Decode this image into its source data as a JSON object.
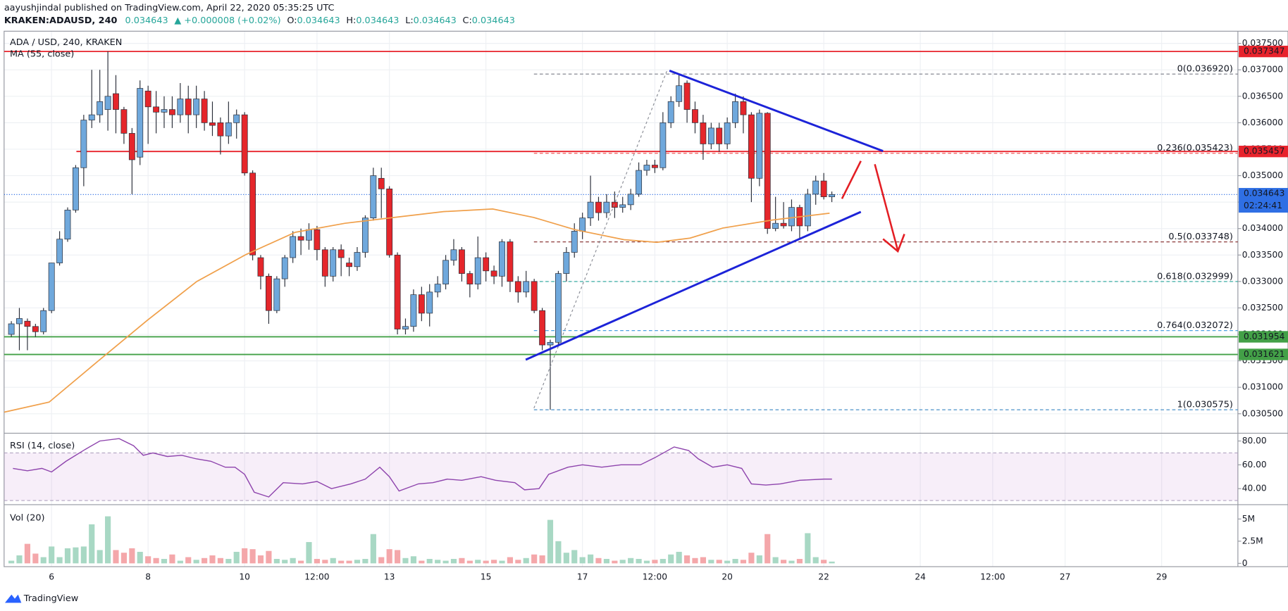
{
  "header": {
    "author_line": "aayushjindal published on TradingView.com, April 22, 2020 05:35:25 UTC",
    "symbol": "KRAKEN:ADAUSD, 240",
    "price": "0.034643",
    "change": "▲ +0.000008 (+0.02%)",
    "ohlc": [
      {
        "label": "O:",
        "value": "0.034643"
      },
      {
        "label": "H:",
        "value": "0.034643"
      },
      {
        "label": "L:",
        "value": "0.034643"
      },
      {
        "label": "C:",
        "value": "0.034643"
      }
    ],
    "footer": "TradingView"
  },
  "chart_data": [
    {
      "type": "candlestick",
      "title": "ADA / USD, 240, KRAKEN",
      "x": [
        5.167,
        5.333,
        5.5,
        5.667,
        5.833,
        6,
        6.167,
        6.333,
        6.5,
        6.667,
        6.833,
        7,
        7.167,
        7.333,
        7.5,
        7.667,
        7.833,
        8,
        8.167,
        8.333,
        8.5,
        8.667,
        8.833,
        9,
        9.167,
        9.333,
        9.5,
        9.667,
        9.833,
        10,
        10.167,
        10.333,
        10.5,
        10.667,
        10.833,
        11,
        11.167,
        11.333,
        11.5,
        11.667,
        11.833,
        12,
        12.167,
        12.333,
        12.5,
        12.667,
        12.833,
        13,
        13.167,
        13.333,
        13.5,
        13.667,
        13.833,
        14,
        14.167,
        14.333,
        14.5,
        14.667,
        14.833,
        15,
        15.167,
        15.333,
        15.5,
        15.667,
        15.833,
        16,
        16.167,
        16.333,
        16.5,
        16.667,
        16.833,
        17,
        17.167,
        17.333,
        17.5,
        17.667,
        17.833,
        18,
        18.167,
        18.333,
        18.5,
        18.667,
        18.833,
        19,
        19.167,
        19.333,
        19.5,
        19.667,
        19.833,
        20,
        20.167,
        20.333,
        20.5,
        20.667,
        20.833,
        21,
        21.167,
        21.333,
        21.5,
        21.667,
        21.833,
        22,
        22.167
      ],
      "open": [
        0.032,
        0.0322,
        0.03225,
        0.03215,
        0.03205,
        0.03245,
        0.03335,
        0.0338,
        0.03435,
        0.03515,
        0.03605,
        0.03615,
        0.03625,
        0.03655,
        0.03625,
        0.0358,
        0.03535,
        0.0366,
        0.0363,
        0.0362,
        0.03625,
        0.03615,
        0.03645,
        0.03615,
        0.03645,
        0.036,
        0.036,
        0.03575,
        0.036,
        0.03615,
        0.03505,
        0.03345,
        0.0331,
        0.03245,
        0.03305,
        0.03345,
        0.03385,
        0.03378,
        0.03398,
        0.0336,
        0.0331,
        0.0336,
        0.03335,
        0.03328,
        0.03355,
        0.0342,
        0.03495,
        0.03475,
        0.0335,
        0.0321,
        0.03215,
        0.03275,
        0.0324,
        0.0328,
        0.03295,
        0.0334,
        0.0336,
        0.03315,
        0.03295,
        0.03345,
        0.0332,
        0.0331,
        0.03375,
        0.033,
        0.0328,
        0.033,
        0.03245,
        0.0318,
        0.03185,
        0.03315,
        0.03355,
        0.03395,
        0.0342,
        0.0345,
        0.0343,
        0.0345,
        0.0344,
        0.03445,
        0.03465,
        0.0351,
        0.0352,
        0.03515,
        0.036,
        0.0364,
        0.03675,
        0.03625,
        0.036,
        0.0356,
        0.0359,
        0.0356,
        0.036,
        0.0364,
        0.03615,
        0.03495,
        0.03618,
        0.034,
        0.0341,
        0.03405,
        0.0344,
        0.03405,
        0.03465,
        0.0349,
        0.0346
      ],
      "high": [
        0.03225,
        0.0325,
        0.0323,
        0.0322,
        0.0325,
        0.03335,
        0.03395,
        0.0344,
        0.0352,
        0.03615,
        0.037,
        0.037,
        0.03735,
        0.0369,
        0.0363,
        0.0359,
        0.0368,
        0.0367,
        0.0366,
        0.0365,
        0.0365,
        0.03675,
        0.0367,
        0.0367,
        0.0366,
        0.0364,
        0.0361,
        0.0364,
        0.03625,
        0.0362,
        0.0351,
        0.0335,
        0.03315,
        0.0331,
        0.0335,
        0.03395,
        0.034,
        0.0341,
        0.03405,
        0.03365,
        0.03365,
        0.0337,
        0.03345,
        0.03365,
        0.03425,
        0.03515,
        0.03515,
        0.0348,
        0.03355,
        0.0323,
        0.03285,
        0.0329,
        0.03295,
        0.0331,
        0.0335,
        0.0338,
        0.03365,
        0.0332,
        0.03385,
        0.03355,
        0.0333,
        0.0338,
        0.0338,
        0.0331,
        0.0332,
        0.03305,
        0.0325,
        0.0319,
        0.0332,
        0.03365,
        0.0341,
        0.0343,
        0.035,
        0.0346,
        0.03465,
        0.0347,
        0.0346,
        0.03475,
        0.03525,
        0.0353,
        0.0353,
        0.0362,
        0.0365,
        0.03692,
        0.0368,
        0.0364,
        0.03615,
        0.036,
        0.036,
        0.0361,
        0.03655,
        0.0365,
        0.0362,
        0.03625,
        0.0362,
        0.0346,
        0.0345,
        0.03455,
        0.03445,
        0.03475,
        0.035,
        0.03505,
        0.0347
      ],
      "low": [
        0.03195,
        0.0317,
        0.0317,
        0.03195,
        0.032,
        0.0324,
        0.0333,
        0.03375,
        0.0343,
        0.0348,
        0.0359,
        0.036,
        0.03585,
        0.0358,
        0.0356,
        0.03465,
        0.0352,
        0.0356,
        0.0358,
        0.0359,
        0.0359,
        0.036,
        0.0358,
        0.0359,
        0.03585,
        0.03575,
        0.0354,
        0.0356,
        0.0357,
        0.035,
        0.0334,
        0.03285,
        0.0322,
        0.0324,
        0.0329,
        0.03335,
        0.0335,
        0.0336,
        0.0334,
        0.0329,
        0.033,
        0.0331,
        0.0331,
        0.0332,
        0.03345,
        0.03415,
        0.0342,
        0.03345,
        0.032,
        0.032,
        0.03205,
        0.03225,
        0.03215,
        0.0327,
        0.03285,
        0.0333,
        0.033,
        0.0327,
        0.03285,
        0.033,
        0.03295,
        0.0329,
        0.0328,
        0.0326,
        0.0327,
        0.0324,
        0.0317,
        0.030575,
        0.0318,
        0.033,
        0.03345,
        0.0338,
        0.03405,
        0.03415,
        0.0342,
        0.0342,
        0.0343,
        0.03435,
        0.0346,
        0.035,
        0.03505,
        0.0351,
        0.0359,
        0.0363,
        0.036,
        0.0358,
        0.0353,
        0.0355,
        0.03545,
        0.0355,
        0.0359,
        0.0358,
        0.0345,
        0.0348,
        0.0339,
        0.03395,
        0.034,
        0.03395,
        0.0338,
        0.03395,
        0.03445,
        0.03455,
        0.0345
      ],
      "close": [
        0.0322,
        0.0323,
        0.03215,
        0.03205,
        0.03245,
        0.03335,
        0.0338,
        0.03435,
        0.03515,
        0.03605,
        0.03615,
        0.0364,
        0.0365,
        0.03625,
        0.0358,
        0.0353,
        0.03665,
        0.0363,
        0.0362,
        0.03625,
        0.03615,
        0.03645,
        0.03615,
        0.03645,
        0.036,
        0.03595,
        0.03575,
        0.036,
        0.03615,
        0.03505,
        0.0335,
        0.0331,
        0.03245,
        0.03305,
        0.03345,
        0.03385,
        0.03378,
        0.03398,
        0.0336,
        0.0331,
        0.0336,
        0.03345,
        0.03328,
        0.03355,
        0.0342,
        0.035,
        0.03475,
        0.0335,
        0.0321,
        0.03215,
        0.03275,
        0.0324,
        0.0328,
        0.03295,
        0.0334,
        0.0336,
        0.03315,
        0.03295,
        0.03345,
        0.0332,
        0.0331,
        0.03375,
        0.033,
        0.0328,
        0.033,
        0.03245,
        0.0318,
        0.03185,
        0.03315,
        0.03355,
        0.03395,
        0.0342,
        0.0345,
        0.0343,
        0.0345,
        0.0344,
        0.03445,
        0.03465,
        0.0351,
        0.0352,
        0.03515,
        0.036,
        0.0364,
        0.0367,
        0.03625,
        0.036,
        0.0356,
        0.0359,
        0.0356,
        0.036,
        0.0364,
        0.03615,
        0.03495,
        0.03618,
        0.034,
        0.0341,
        0.03405,
        0.0344,
        0.03405,
        0.03465,
        0.0349,
        0.0346,
        0.034643
      ],
      "up_color": "#6fa8dc",
      "down_color": "#e5262b",
      "border_color": "#2a2e39",
      "xlim": [
        5.017,
        30.58
      ],
      "xticks": [
        6,
        8,
        10,
        {
          "value": 11.5,
          "label": "12:00"
        },
        13,
        15,
        17,
        {
          "value": 18.5,
          "label": "12:00"
        },
        20,
        22,
        24,
        {
          "value": 25.5,
          "label": "12:00"
        },
        27,
        29
      ],
      "ylim": [
        0.03014,
        0.03773
      ],
      "yticks": [
        {
          "value": 0.0375,
          "label": "0.037500"
        },
        {
          "value": 0.037,
          "label": "0.037000"
        },
        {
          "value": 0.0365,
          "label": "0.036500"
        },
        {
          "value": 0.036,
          "label": "0.036000"
        },
        {
          "value": 0.0355,
          "label": "0.035500"
        },
        {
          "value": 0.035,
          "label": "0.035000"
        },
        {
          "value": 0.0345,
          "label": "0.034500"
        },
        {
          "value": 0.034,
          "label": "0.034000"
        },
        {
          "value": 0.0335,
          "label": "0.033500"
        },
        {
          "value": 0.033,
          "label": "0.033000"
        },
        {
          "value": 0.0325,
          "label": "0.032500"
        },
        {
          "value": 0.032,
          "label": "0.032000"
        },
        {
          "value": 0.0315,
          "label": "0.031500"
        },
        {
          "value": 0.031,
          "label": "0.031000"
        },
        {
          "value": 0.0305,
          "label": "0.030500"
        }
      ],
      "grid": true,
      "series": [
        {
          "name": "MA (55, close)",
          "color": "#f0a04b",
          "x": [
            5.02,
            5.95,
            6.97,
            7.99,
            9.01,
            10.03,
            11.05,
            12.08,
            13.1,
            14.12,
            15.14,
            15.99,
            16.84,
            17.86,
            18.54,
            19.23,
            19.91,
            20.93,
            22.12
          ],
          "values": [
            0.03053,
            0.03072,
            0.0315,
            0.03227,
            0.033,
            0.03351,
            0.03393,
            0.0341,
            0.03421,
            0.03432,
            0.03437,
            0.03421,
            0.03398,
            0.03379,
            0.03374,
            0.03382,
            0.03401,
            0.03416,
            0.03429
          ]
        }
      ],
      "levels": [
        {
          "value": 0.037347,
          "color": "#e8232c"
        },
        {
          "value": 0.035457,
          "color": "#e8232c"
        },
        {
          "value": 0.031954,
          "color": "#43a047"
        },
        {
          "value": 0.031621,
          "color": "#43a047"
        }
      ],
      "fibonacci": [
        {
          "value": 0.03692,
          "label": "0(0.036920)",
          "color": "#787b86"
        },
        {
          "value": 0.035423,
          "label": "0.236(0.035423)",
          "color": "#f05a5a"
        },
        {
          "value": 0.033748,
          "label": "0.5(0.033748)",
          "color": "#8d3a3a"
        },
        {
          "value": 0.032999,
          "label": "0.618(0.032999)",
          "color": "#26a69a"
        },
        {
          "value": 0.032072,
          "label": "0.764(0.032072)",
          "color": "#4a9fe0"
        },
        {
          "value": 0.030575,
          "label": "1(0.030575)",
          "color": "#4a90c8"
        }
      ],
      "last": {
        "value": 0.034643,
        "countdown": "02:24:41",
        "color": "#2f6fe4"
      }
    },
    {
      "type": "line",
      "title": "RSI (14, close)",
      "color": "#8e44ad",
      "x": [
        5.2,
        5.5,
        5.8,
        6.0,
        6.3,
        6.7,
        7.0,
        7.4,
        7.7,
        7.9,
        8.1,
        8.4,
        8.7,
        9.0,
        9.3,
        9.6,
        9.8,
        10.0,
        10.2,
        10.5,
        10.8,
        11.2,
        11.5,
        11.8,
        12.2,
        12.5,
        12.8,
        13.0,
        13.2,
        13.6,
        13.9,
        14.2,
        14.5,
        14.9,
        15.2,
        15.6,
        15.8,
        16.1,
        16.3,
        16.7,
        17.0,
        17.4,
        17.8,
        18.2,
        18.5,
        18.9,
        19.2,
        19.4,
        19.7,
        20.0,
        20.3,
        20.5,
        20.8,
        21.1,
        21.5,
        22.0,
        22.17
      ],
      "values": [
        57,
        55,
        57,
        54,
        63,
        73,
        80,
        82,
        76,
        68,
        70,
        67,
        68,
        65,
        63,
        58,
        58,
        52,
        37,
        33,
        45,
        44,
        46,
        40,
        44,
        48,
        58,
        50,
        38,
        44,
        45,
        48,
        47,
        50,
        47,
        45,
        39,
        40,
        52,
        58,
        60,
        58,
        60,
        60,
        66,
        75,
        72,
        65,
        58,
        60,
        57,
        44,
        43,
        44,
        47,
        48,
        48
      ],
      "ylim": [
        26.9,
        86.2
      ],
      "yticks": [
        {
          "value": 80,
          "label": "80.00"
        },
        {
          "value": 60,
          "label": "60.00"
        },
        {
          "value": 40,
          "label": "40.00"
        }
      ],
      "band": [
        30,
        70
      ],
      "band_color": "#9c27b0"
    },
    {
      "type": "bar",
      "title": "Vol (20)",
      "values": [
        300000,
        900000,
        2200000,
        1100000,
        700000,
        1900000,
        700000,
        1700000,
        1800000,
        1900000,
        4400000,
        1500000,
        5300000,
        1500000,
        1200000,
        1700000,
        1300000,
        800000,
        600000,
        500000,
        1000000,
        300000,
        700000,
        400000,
        600000,
        900000,
        600000,
        500000,
        1300000,
        1700000,
        1600000,
        900000,
        1400000,
        500000,
        400000,
        600000,
        300000,
        2400000,
        500000,
        400000,
        600000,
        300000,
        300000,
        400000,
        500000,
        3300000,
        700000,
        1600000,
        1500000,
        600000,
        800000,
        300000,
        500000,
        400000,
        300000,
        500000,
        600000,
        300000,
        400000,
        300000,
        400000,
        300000,
        700000,
        400000,
        600000,
        1000000,
        900000,
        4900000,
        2500000,
        1200000,
        1500000,
        700000,
        1000000,
        600000,
        500000,
        300000,
        400000,
        600000,
        500000,
        300000,
        400000,
        500000,
        1000000,
        1300000,
        900000,
        600000,
        700000,
        400000,
        400000,
        300000,
        500000,
        400000,
        1200000,
        900000,
        3300000,
        700000,
        400000,
        300000,
        500000,
        3400000,
        700000,
        400000,
        200000
      ],
      "ylim": [
        -370000,
        6570000
      ],
      "yticks": [
        {
          "value": 5000000,
          "label": "5M"
        },
        {
          "value": 2500000,
          "label": "2.5M"
        },
        0
      ],
      "up_color": "#a8d8c4",
      "down_color": "#f4a7aa"
    }
  ]
}
